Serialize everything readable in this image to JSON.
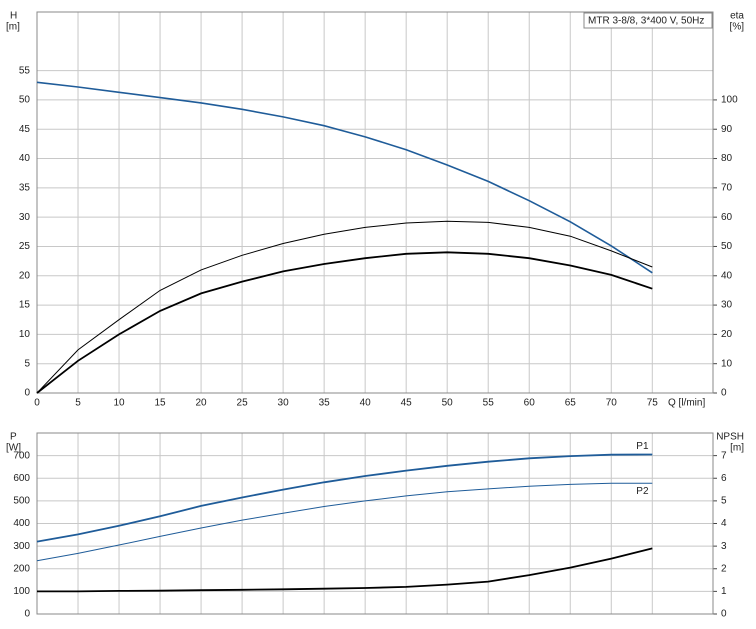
{
  "chart_data": [
    {
      "type": "line",
      "annotation": "MTR 3-8/8, 3*400 V, 50Hz",
      "ylabel": [
        "H",
        "[m]"
      ],
      "y2label": [
        "eta",
        "[%]"
      ],
      "xlabel": "Q [l/min]",
      "x": [
        0,
        5,
        10,
        15,
        20,
        25,
        30,
        35,
        40,
        45,
        50,
        55,
        60,
        65,
        70,
        75
      ],
      "xlim": [
        0,
        82.4
      ],
      "xticks": [
        0,
        5,
        10,
        15,
        20,
        25,
        30,
        35,
        40,
        45,
        50,
        55,
        60,
        65,
        70,
        75
      ],
      "ylim": [
        0,
        65
      ],
      "yticks": [
        0,
        5,
        10,
        15,
        20,
        25,
        30,
        35,
        40,
        45,
        50,
        55
      ],
      "y2lim": [
        0,
        130
      ],
      "y2ticks": [
        0,
        10,
        20,
        30,
        40,
        50,
        60,
        70,
        80,
        90,
        100
      ],
      "grid": true,
      "series": [
        {
          "color": "#1f5c99",
          "axis": "y",
          "values": [
            53,
            52.2,
            51.3,
            50.4,
            49.5,
            48.4,
            47.1,
            45.6,
            43.7,
            41.5,
            38.9,
            36.1,
            32.8,
            29.2,
            25.1,
            20.5
          ]
        },
        {
          "color": "#000000",
          "axis": "y2",
          "values": [
            0,
            14.7,
            25,
            35,
            42,
            47,
            51,
            54.2,
            56.5,
            58,
            58.6,
            58.2,
            56.5,
            53.5,
            48.5,
            43
          ]
        },
        {
          "color": "#000000",
          "axis": "y2",
          "values": [
            0,
            11,
            20,
            28,
            34,
            38,
            41.5,
            44,
            46,
            47.5,
            48,
            47.5,
            46,
            43.5,
            40.3,
            35.6
          ]
        }
      ]
    },
    {
      "type": "line",
      "ylabel": [
        "P",
        "[W]"
      ],
      "y2label": [
        "NPSH",
        "[m]"
      ],
      "x": [
        0,
        5,
        10,
        15,
        20,
        25,
        30,
        35,
        40,
        45,
        50,
        55,
        60,
        65,
        70,
        75
      ],
      "xlim": [
        0,
        82.4
      ],
      "ylim": [
        0,
        800
      ],
      "yticks": [
        0,
        100,
        200,
        300,
        400,
        500,
        600,
        700
      ],
      "y2lim": [
        0,
        8
      ],
      "y2ticks": [
        0,
        1,
        2,
        3,
        4,
        5,
        6,
        7
      ],
      "grid": true,
      "series": [
        {
          "name": "P1",
          "color": "#1f5c99",
          "axis": "y",
          "values": [
            320,
            352,
            390,
            432,
            478,
            515,
            550,
            582,
            610,
            634,
            655,
            673,
            688,
            698,
            704,
            705
          ]
        },
        {
          "name": "P2",
          "color": "#1f5c99",
          "axis": "y",
          "values": [
            235,
            268,
            305,
            343,
            380,
            415,
            445,
            475,
            500,
            522,
            540,
            553,
            565,
            573,
            578,
            578
          ]
        },
        {
          "color": "#000000",
          "axis": "y2",
          "values": [
            1,
            1,
            1.02,
            1.03,
            1.05,
            1.07,
            1.09,
            1.12,
            1.15,
            1.2,
            1.3,
            1.43,
            1.72,
            2.05,
            2.45,
            2.9
          ]
        }
      ]
    }
  ]
}
